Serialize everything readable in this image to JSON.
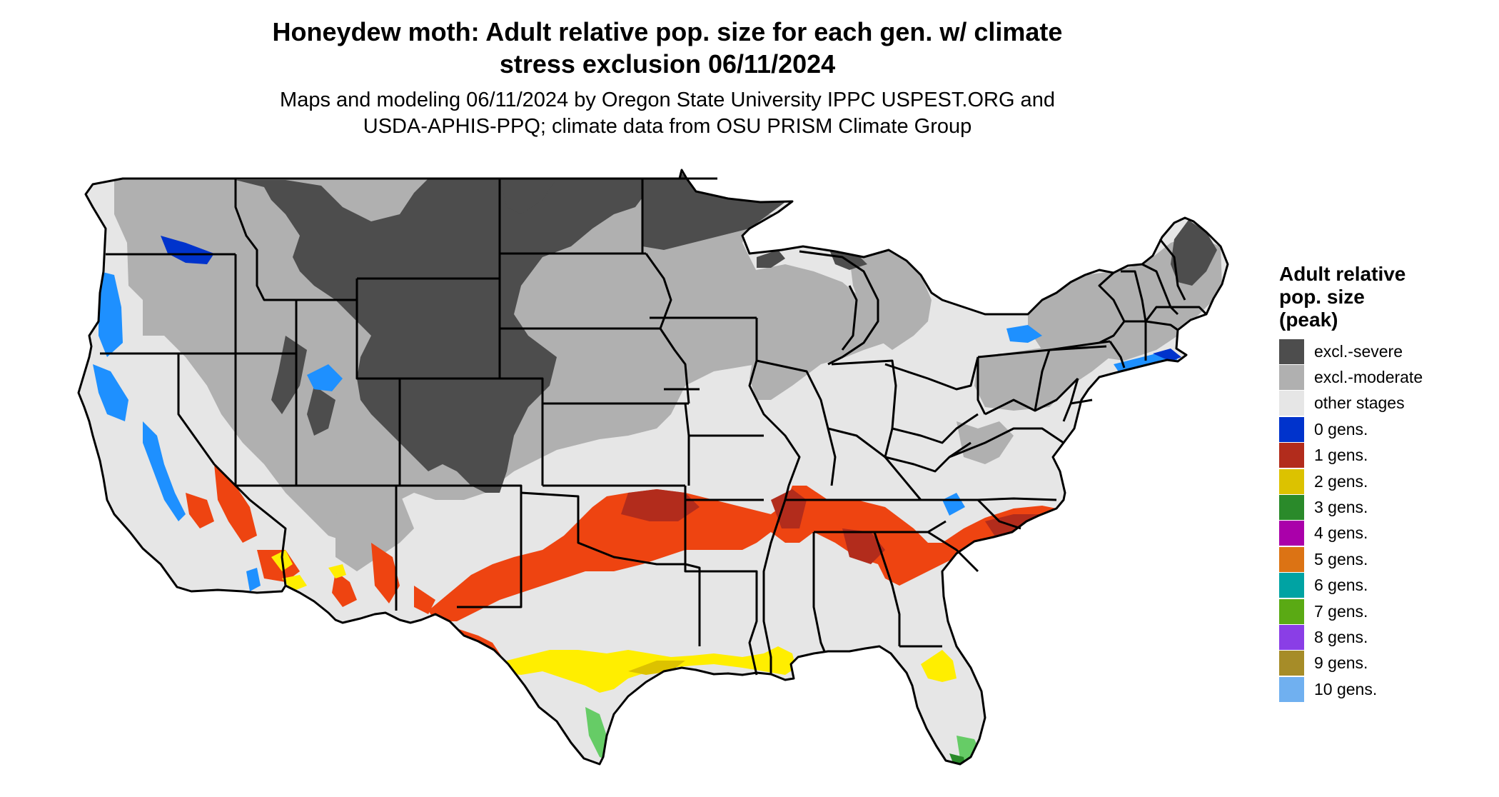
{
  "header": {
    "title_lines": [
      "Honeydew moth: Adult relative pop. size for each gen. w/ climate",
      "stress exclusion 06/11/2024"
    ],
    "subtitle_lines": [
      "Maps and modeling 06/11/2024 by Oregon State University IPPC USPEST.ORG and",
      "USDA-APHIS-PPQ; climate data from OSU PRISM Climate Group"
    ]
  },
  "legend": {
    "title_lines": [
      "Adult relative",
      "pop. size",
      "(peak)"
    ],
    "items": [
      {
        "label": "excl.-severe",
        "color": "#4d4d4d"
      },
      {
        "label": "excl.-moderate",
        "color": "#b0b0b0"
      },
      {
        "label": "other stages",
        "color": "#e6e6e6"
      },
      {
        "label": "0 gens.",
        "color": "#0033cc"
      },
      {
        "label": "1 gens.",
        "color": "#b22c1c"
      },
      {
        "label": "2 gens.",
        "color": "#dcc200"
      },
      {
        "label": "3 gens.",
        "color": "#2a8a2a"
      },
      {
        "label": "4 gens.",
        "color": "#aa00aa"
      },
      {
        "label": "5 gens.",
        "color": "#dc7314"
      },
      {
        "label": "6 gens.",
        "color": "#00a3a3"
      },
      {
        "label": "7 gens.",
        "color": "#5aaa14"
      },
      {
        "label": "8 gens.",
        "color": "#8a3ee6"
      },
      {
        "label": "9 gens.",
        "color": "#a68c28"
      },
      {
        "label": "10 gens.",
        "color": "#70b0f0"
      }
    ]
  },
  "map_colors": {
    "severe": "#4d4d4d",
    "moderate": "#b0b0b0",
    "other": "#e6e6e6",
    "gen0": "#0033cc",
    "gen0_light": "#1e90ff",
    "gen1": "#b22c1c",
    "gen1_bright": "#ee4411",
    "gen2": "#dcc200",
    "gen2_bright": "#ffee00",
    "gen3": "#2a8a2a",
    "gen3_light": "#66cc66",
    "border": "#000000"
  }
}
